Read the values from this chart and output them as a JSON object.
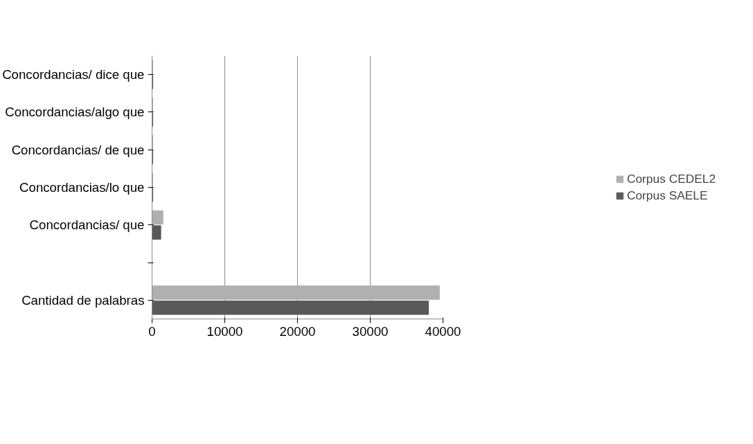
{
  "chart_data": {
    "type": "bar",
    "orientation": "horizontal",
    "categories": [
      "Concordancias/ dice que",
      "Concordancias/algo que",
      "Concordancias/ de que",
      "Concordancias/lo que",
      "Concordancias/ que",
      null,
      "Cantidad de palabras"
    ],
    "series": [
      {
        "name": "Corpus CEDEL2",
        "color": "#b0b0b0",
        "values": [
          100,
          100,
          100,
          100,
          1500,
          null,
          39500
        ]
      },
      {
        "name": "Corpus SAELE",
        "color": "#595959",
        "values": [
          100,
          100,
          100,
          100,
          1200,
          null,
          38000
        ]
      }
    ],
    "xlim": [
      0,
      40000
    ],
    "xticks": [
      0,
      10000,
      20000,
      30000,
      40000
    ],
    "grid": "x",
    "legend": "right"
  }
}
